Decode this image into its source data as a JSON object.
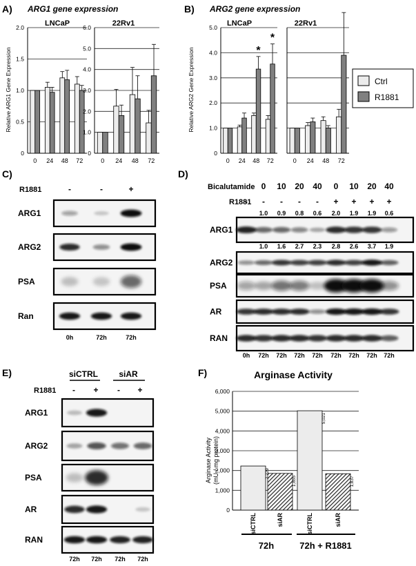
{
  "panels": {
    "A": {
      "letter": "A)",
      "title": "ARG1 gene expression",
      "ylabel": "Relative ARG1 Gene Expression",
      "subcharts": [
        {
          "title": "LNCaP",
          "ylim": [
            0,
            2.0
          ],
          "ticks": [
            "0",
            "0.5",
            "1.0",
            "1.5",
            "2.0"
          ]
        },
        {
          "title": "22Rv1",
          "ylim": [
            0,
            6.0
          ],
          "ticks": [
            "0",
            "1.0",
            "2.0",
            "3.0",
            "4.0",
            "5.0",
            "6.0"
          ]
        }
      ]
    },
    "B": {
      "letter": "B)",
      "title": "ARG2 gene expression",
      "ylabel": "Relative ARG2 Gene Expression",
      "subcharts": [
        {
          "title": "LNCaP",
          "ylim": [
            0,
            5.0
          ],
          "ticks": [
            "0",
            "1.0",
            "2.0",
            "3.0",
            "4.0",
            "5.0"
          ]
        },
        {
          "title": "22Rv1",
          "ylim": [
            0,
            5.0
          ],
          "ticks": []
        }
      ],
      "legend": [
        "Ctrl",
        "R1881"
      ]
    },
    "C": {
      "letter": "C)",
      "treatment_label": "R1881",
      "signs": [
        "-",
        "-",
        "+"
      ],
      "rows": [
        "ARG1",
        "ARG2",
        "PSA",
        "Ran"
      ],
      "times": [
        "0h",
        "72h",
        "72h"
      ]
    },
    "D": {
      "letter": "D)",
      "bicalutamide_label": "Bicalutamide",
      "bicalutamide_values": [
        "0",
        "10",
        "20",
        "40",
        "0",
        "10",
        "20",
        "40"
      ],
      "treatment_label": "R1881",
      "r1881_signs": [
        "-",
        "-",
        "-",
        "-",
        "-",
        "+",
        "+",
        "+",
        "+"
      ],
      "arg1_quant": [
        "1.0",
        "0.9",
        "0.8",
        "0.6",
        "2.0",
        "1.9",
        "1.9",
        "0.6"
      ],
      "arg2_quant": [
        "1.0",
        "1.6",
        "2.7",
        "2.3",
        "2.8",
        "2.6",
        "3.7",
        "1.9"
      ],
      "rows": [
        "ARG1",
        "ARG2",
        "PSA",
        "AR",
        "RAN"
      ],
      "times": [
        "0h",
        "72h",
        "72h",
        "72h",
        "72h",
        "72h",
        "72h",
        "72h",
        "72h"
      ]
    },
    "E": {
      "letter": "E)",
      "groups": [
        "siCTRL",
        "siAR"
      ],
      "treatment_label": "R1881",
      "signs": [
        "-",
        "+",
        "-",
        "+"
      ],
      "rows": [
        "ARG1",
        "ARG2",
        "PSA",
        "AR",
        "RAN"
      ],
      "times": [
        "72h",
        "72h",
        "72h",
        "72h"
      ]
    },
    "F": {
      "letter": "F)",
      "title": "Arginase Activity",
      "ylabel_line1": "Arginase Activity",
      "ylabel_line2": "(mU / mg protein)",
      "ticks": [
        "0",
        "1,000",
        "2,000",
        "3,000",
        "4,000",
        "5,000",
        "6,000"
      ],
      "group_labels": [
        "72h",
        "72h + R1881"
      ]
    }
  },
  "chart_data": [
    {
      "type": "bar",
      "title": "LNCaP",
      "ylabel": "Relative ARG1 Gene Expression",
      "categories": [
        "0",
        "24",
        "48",
        "72"
      ],
      "ylim": [
        0,
        2.0
      ],
      "series": [
        {
          "name": "Ctrl",
          "values": [
            1.0,
            1.05,
            1.2,
            1.1
          ],
          "errors": [
            0.0,
            0.08,
            0.1,
            0.12
          ]
        },
        {
          "name": "R1881",
          "values": [
            1.0,
            0.97,
            1.17,
            1.0
          ],
          "errors": [
            0.0,
            0.08,
            0.15,
            0.08
          ]
        }
      ]
    },
    {
      "type": "bar",
      "title": "22Rv1",
      "ylabel": "Relative ARG1 Gene Expression",
      "categories": [
        "0",
        "24",
        "48",
        "72"
      ],
      "ylim": [
        0,
        6.0
      ],
      "series": [
        {
          "name": "Ctrl",
          "values": [
            1.0,
            2.25,
            2.8,
            1.45
          ],
          "errors": [
            0.0,
            0.8,
            1.3,
            0.6
          ]
        },
        {
          "name": "R1881",
          "values": [
            1.0,
            1.8,
            2.6,
            3.7
          ],
          "errors": [
            0.0,
            0.5,
            1.1,
            1.5
          ]
        }
      ]
    },
    {
      "type": "bar",
      "title": "LNCaP",
      "ylabel": "Relative ARG2 Gene Expression",
      "categories": [
        "0",
        "24",
        "48",
        "72"
      ],
      "ylim": [
        0,
        5.0
      ],
      "series": [
        {
          "name": "Ctrl",
          "values": [
            1.0,
            1.05,
            1.5,
            1.35
          ],
          "errors": [
            0.0,
            0.07,
            0.1,
            0.15
          ]
        },
        {
          "name": "R1881",
          "values": [
            1.0,
            1.4,
            3.35,
            3.55
          ],
          "errors": [
            0.0,
            0.2,
            0.5,
            0.8
          ]
        }
      ],
      "annotations": [
        {
          "category": "48",
          "text": "*"
        },
        {
          "category": "72",
          "text": "*"
        }
      ]
    },
    {
      "type": "bar",
      "title": "22Rv1",
      "ylabel": "Relative ARG2 Gene Expression",
      "categories": [
        "0",
        "24",
        "48",
        "72"
      ],
      "ylim": [
        0,
        5.0
      ],
      "series": [
        {
          "name": "Ctrl",
          "values": [
            1.0,
            1.1,
            1.3,
            1.45
          ],
          "errors": [
            0.0,
            0.12,
            0.15,
            0.3
          ]
        },
        {
          "name": "R1881",
          "values": [
            1.0,
            1.25,
            1.0,
            3.9
          ],
          "errors": [
            0.0,
            0.15,
            0.1,
            1.7
          ]
        }
      ]
    },
    {
      "type": "bar",
      "title": "Arginase Activity",
      "ylabel": "Arginase Activity (mU / mg protein)",
      "categories": [
        "siCTRL",
        "siAR",
        "siCTRL",
        "siAR"
      ],
      "values": [
        2229,
        1855,
        5021,
        1837
      ],
      "value_labels": [
        "2,229",
        "1,855",
        "5,021",
        "1,837"
      ],
      "ylim": [
        0,
        6000
      ]
    }
  ],
  "colors": {
    "ctrl": "#ececec",
    "r1881": "#808080",
    "hatch": "#303030",
    "blot_border": "#000000",
    "band": "#111111"
  }
}
